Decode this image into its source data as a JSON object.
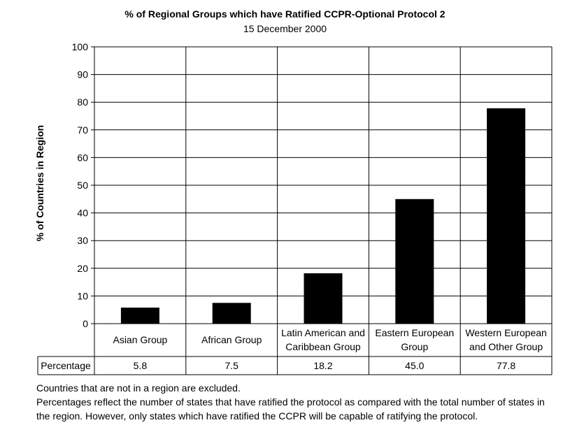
{
  "chart_data": {
    "type": "bar",
    "title": "% of Regional Groups which have Ratified CCPR-Optional Protocol 2",
    "subtitle": "15 December 2000",
    "ylabel": "% of Countries in Region",
    "xlabel": "",
    "ylim": [
      0,
      100
    ],
    "yticks": [
      0,
      10,
      20,
      30,
      40,
      50,
      60,
      70,
      80,
      90,
      100
    ],
    "grid": true,
    "categories": [
      "Asian Group",
      "African Group",
      "Latin American and Caribbean Group",
      "Eastern European Group",
      "Western European and Other Group"
    ],
    "values": [
      5.8,
      7.5,
      18.2,
      45.0,
      77.8
    ],
    "bar_color": "#000000",
    "data_table": {
      "row_label": "Percentage",
      "values": [
        "5.8",
        "7.5",
        "18.2",
        "45.0",
        "77.8"
      ]
    }
  },
  "notes": [
    "Countries that are not in a region are excluded.",
    "Percentages reflect the number of states that have ratified the protocol as compared with the total number of states in the region. However, only states which have ratified the CCPR will be capable of ratifying the protocol."
  ]
}
